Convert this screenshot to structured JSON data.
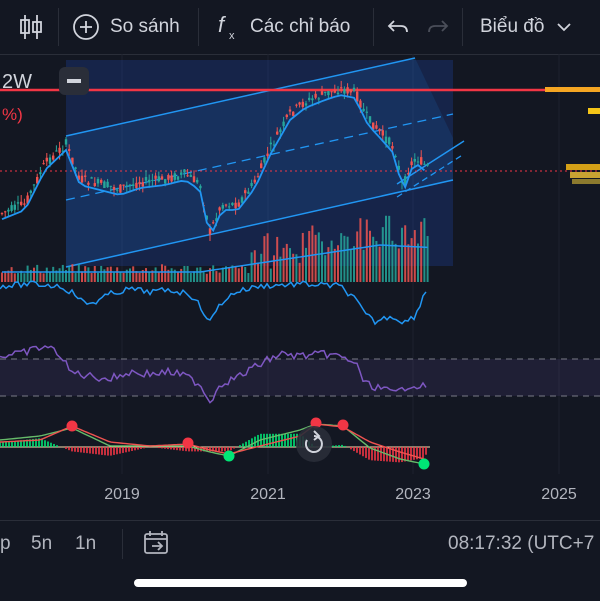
{
  "toolbar": {
    "compare_label": "So sánh",
    "indicators_label": "Các chỉ báo",
    "chart_label": "Biểu đồ",
    "icons": [
      "candlestick-icon",
      "plus-circle-icon",
      "fx-icon",
      "undo-icon",
      "redo-icon"
    ]
  },
  "chart": {
    "interval_text": "2W",
    "percent_text": "%)",
    "colors": {
      "background": "#131722",
      "channel": "#2196f3",
      "price_line": "#f23645",
      "up": "#26a69a",
      "down": "#ef5350",
      "oscillator": "#7e57c2",
      "signal_red": "#f23645",
      "signal_green": "#00e676"
    }
  },
  "time_axis": {
    "labels": [
      "2019",
      "2021",
      "2023",
      "2025"
    ]
  },
  "bottom": {
    "intervals": [
      "p",
      "5n",
      "1n"
    ],
    "time": "08:17:32 (UTC+7"
  }
}
